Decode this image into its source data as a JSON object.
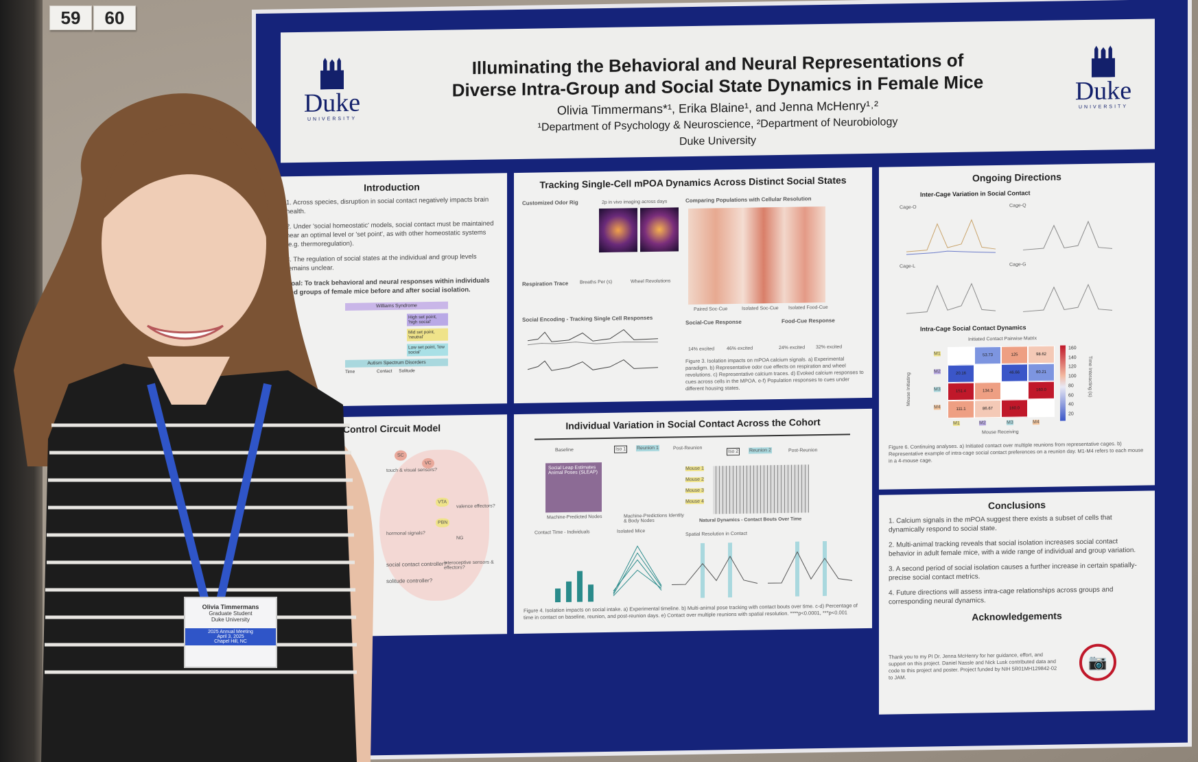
{
  "booth": {
    "numbers": [
      "59",
      "60"
    ]
  },
  "poster": {
    "title_line1": "Illuminating the Behavioral and Neural Representations of",
    "title_line2": "Diverse Intra-Group and Social State Dynamics in Female Mice",
    "authors": "Olivia Timmermans*¹, Erika Blaine¹, and Jenna McHenry¹˒²",
    "affiliation": "¹Department of Psychology & Neuroscience, ²Department of Neurobiology",
    "university": "Duke University",
    "logo_word": "Duke",
    "logo_sub": "UNIVERSITY",
    "introduction": {
      "heading": "Introduction",
      "points": [
        "1. Across species, disruption in social contact negatively impacts brain health.",
        "2. Under 'social homeostatic' models, social contact must be maintained near an optimal level or 'set point', as with other homeostatic systems (e.g. thermoregulation).",
        "3. The regulation of social states at the individual and group levels remains unclear.",
        "Goal: To track behavioral and neural responses within individuals and groups of female mice before and after social isolation."
      ],
      "figure_labels": [
        "Williams Syndrome",
        "High set point, 'high social'",
        "Mid set point, 'neutral'",
        "Low set point, 'low social'",
        "Autism Spectrum Disorders",
        "Time",
        "Contact",
        "Solitude"
      ]
    },
    "circuit": {
      "heading": "Control Circuit Model",
      "labels": [
        "SC",
        "VC",
        "touch & visual sensors?",
        "VTA",
        "valence effectors?",
        "PBN",
        "hormonal signals?",
        "NG",
        "social contact controller?",
        "solitude controller?",
        "interoceptive sensors & effectors?"
      ]
    },
    "tracking": {
      "heading": "Tracking Single-Cell mPOA Dynamics Across Distinct Social States",
      "sub_a": "Customized Odor Rig",
      "sub_a2": "2p in vivo imaging across days",
      "sub_b1": "Respiration Trace",
      "sub_b2": "Breaths Per (s)",
      "sub_b3": "Wheel Revolutions",
      "sub_c": "Social Encoding - Tracking Single Cell Responses",
      "sub_d": "Comparing Populations with Cellular Resolution",
      "sub_e": "Social-Cue Response",
      "sub_f": "Food-Cue Response",
      "heat_labels": [
        "Paired Soc-Cue",
        "Isolated Soc-Cue",
        "Isolated Food-Cue"
      ],
      "pcts": [
        "14% excited",
        "46% excited",
        "24% excited",
        "32% excited"
      ],
      "caption": "Figure 3. Isolation impacts on mPOA calcium signals. a) Experimental paradigm. b) Representative odor cue effects on respiration and wheel revolutions. c) Representative calcium traces. d) Evoked calcium responses to cues across cells in the MPOA. e-f) Population responses to cues under different housing states."
    },
    "variation": {
      "heading": "Individual Variation in Social Contact Across the Cohort",
      "timeline": [
        "Baseline",
        "Iso 1",
        "Reunion 1",
        "Post-Reunion",
        "Iso 2",
        "Reunion 2",
        "Post-Reunion"
      ],
      "sub_b1": "Social Leap Estimates Animal Poses (SLEAP)",
      "sub_b2": "Machine-Predicted Nodes",
      "sub_b3": "Machine-Predictions Identity & Body Nodes",
      "sub_b4": "Natural Dynamics - Contact Bouts Over Time",
      "sub_c": "Contact Time - Individuals",
      "sub_d": "Isolated Mice",
      "sub_e": "Spatial Resolution in Contact",
      "mice": [
        "Mouse 1",
        "Mouse 2",
        "Mouse 3",
        "Mouse 4"
      ],
      "caption": "Figure 4. Isolation impacts on social intake. a) Experimental timeline. b) Multi-animal pose tracking with contact bouts over time. c-d) Percentage of time in contact on baseline, reunion, and post-reunion days. e) Contact over multiple reunions with spatial resolution. ****p<0.0001, ***p<0.001"
    },
    "ongoing": {
      "heading": "Ongoing Directions",
      "sub_a": "Inter-Cage Variation in Social Contact",
      "cages": [
        "Cage-O",
        "Cage-Q",
        "Cage-L",
        "Cage-G"
      ],
      "sub_b": "Intra-Cage Social Contact Dynamics",
      "matrix_title": "Initiated Contact Pairwise Matrix",
      "matrix_rows": [
        "M1",
        "M2",
        "M3",
        "M4"
      ],
      "matrix_x_label": "Mouse Receiving",
      "matrix_y_label": "Mouse Initiating",
      "colorbar_label": "Time Interacting (s)",
      "colorbar_ticks": [
        "160",
        "140",
        "120",
        "100",
        "80",
        "60",
        "40",
        "20"
      ],
      "matrix_values": [
        [
          "",
          "53.73",
          "125",
          "98.62"
        ],
        [
          "20.16",
          "",
          "46.66",
          "60.21"
        ],
        [
          "151.4",
          "134.3",
          "",
          "160.0"
        ],
        [
          "111.1",
          "86.67",
          "160.0",
          ""
        ]
      ],
      "caption": "Figure 6. Continuing analyses. a) Initiated contact over multiple reunions from representative cages. b) Representative example of intra-cage social contact preferences on a reunion day. M1-M4 refers to each mouse in a 4-mouse cage."
    },
    "conclusions": {
      "heading": "Conclusions",
      "points": [
        "1. Calcium signals in the mPOA suggest there exists a subset of cells that dynamically respond to social state.",
        "2. Multi-animal tracking reveals that social isolation increases social contact behavior in adult female mice, with a wide range of individual and group variation.",
        "3. A second period of social isolation causes a further increase in certain spatially-precise social contact metrics.",
        "4. Future directions will assess intra-cage relationships across groups and corresponding neural dynamics."
      ]
    },
    "acknowledgements": {
      "heading": "Acknowledgements",
      "text": "Thank you to my PI Dr. Jenna McHenry for her guidance, effort, and support on this project. Daniel Nassle and Nick Lusk contributed data and code to this project and poster. Project funded by NIH 5R01MH129842-02 to JAM."
    }
  },
  "badge": {
    "name": "Olivia Timmermans",
    "role": "Graduate Student",
    "institution": "Duke University",
    "event": "2025 Annual Meeting",
    "date": "April 3, 2025",
    "place": "Chapel Hill, NC"
  },
  "colors": {
    "poster_border": "#15237a",
    "panel_bg": "#f1f1f0",
    "wall": "#a59b8f",
    "lanyard": "#2f55c8",
    "shirt": "#1c1c1c"
  }
}
